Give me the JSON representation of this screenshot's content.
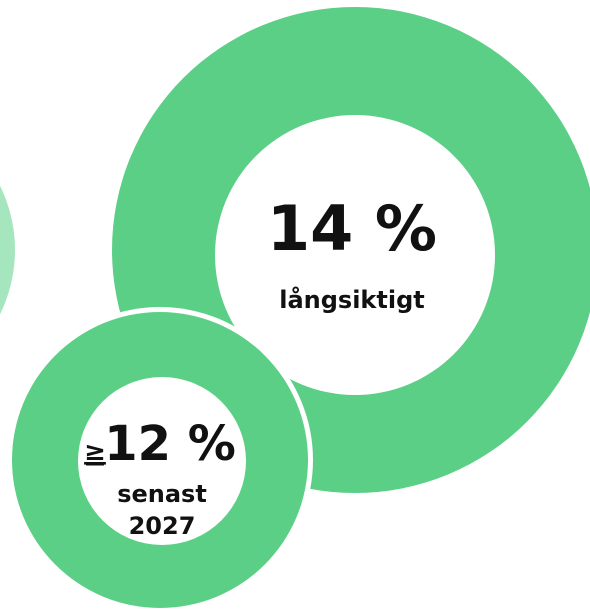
{
  "rings": [
    {
      "value_text": "14 %",
      "label": "långsiktigt"
    },
    {
      "prefix": "≥",
      "value_text": "12 %",
      "label_lines": [
        "senast",
        "2027"
      ]
    }
  ]
}
